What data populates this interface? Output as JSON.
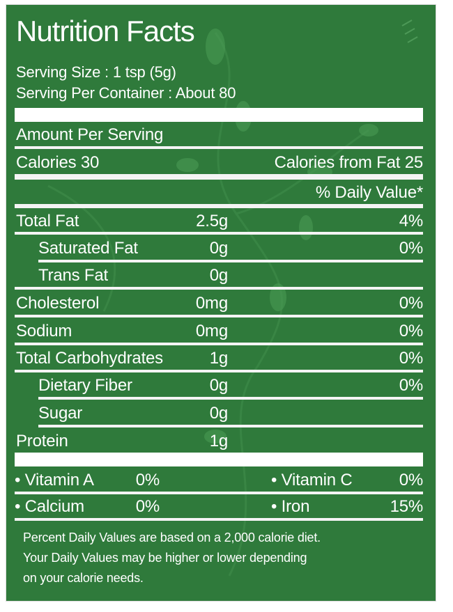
{
  "title": "Nutrition Facts",
  "serving_size": "Serving Size : 1 tsp (5g)",
  "servings_per_container": "Serving Per Container : About 80",
  "amount_per_serving": "Amount Per Serving",
  "calories": "Calories  30",
  "calories_from_fat": "Calories from Fat  25",
  "daily_value_header": "% Daily Value*",
  "nutrients": [
    {
      "name": "Total Fat",
      "amount": "2.5g",
      "dv": "4%"
    },
    {
      "name": "Saturated Fat",
      "amount": "0g",
      "dv": "0%"
    },
    {
      "name": "Trans Fat",
      "amount": "0g",
      "dv": ""
    },
    {
      "name": "Cholesterol",
      "amount": "0mg",
      "dv": "0%"
    },
    {
      "name": "Sodium",
      "amount": "0mg",
      "dv": "0%"
    },
    {
      "name": "Total Carbohydrates",
      "amount": "1g",
      "dv": "0%"
    },
    {
      "name": "Dietary Fiber",
      "amount": "0g",
      "dv": "0%"
    },
    {
      "name": "Sugar",
      "amount": "0g",
      "dv": ""
    },
    {
      "name": "Protein",
      "amount": "1g",
      "dv": ""
    }
  ],
  "vitamins": [
    {
      "left_name": "• Vitamin A",
      "left_value": "0%",
      "right_name": "• Vitamin C",
      "right_value": "0%"
    },
    {
      "left_name": "• Calcium",
      "left_value": "0%",
      "right_name": "• Iron",
      "right_value": "15%"
    }
  ],
  "footnote": [
    "Percent Daily Values are based on a 2,000 calorie diet.",
    "Your Daily Values may be higher or lower depending",
    "on your calorie needs."
  ],
  "colors": {
    "background": "#2f7a3b",
    "text": "#ffffff"
  }
}
